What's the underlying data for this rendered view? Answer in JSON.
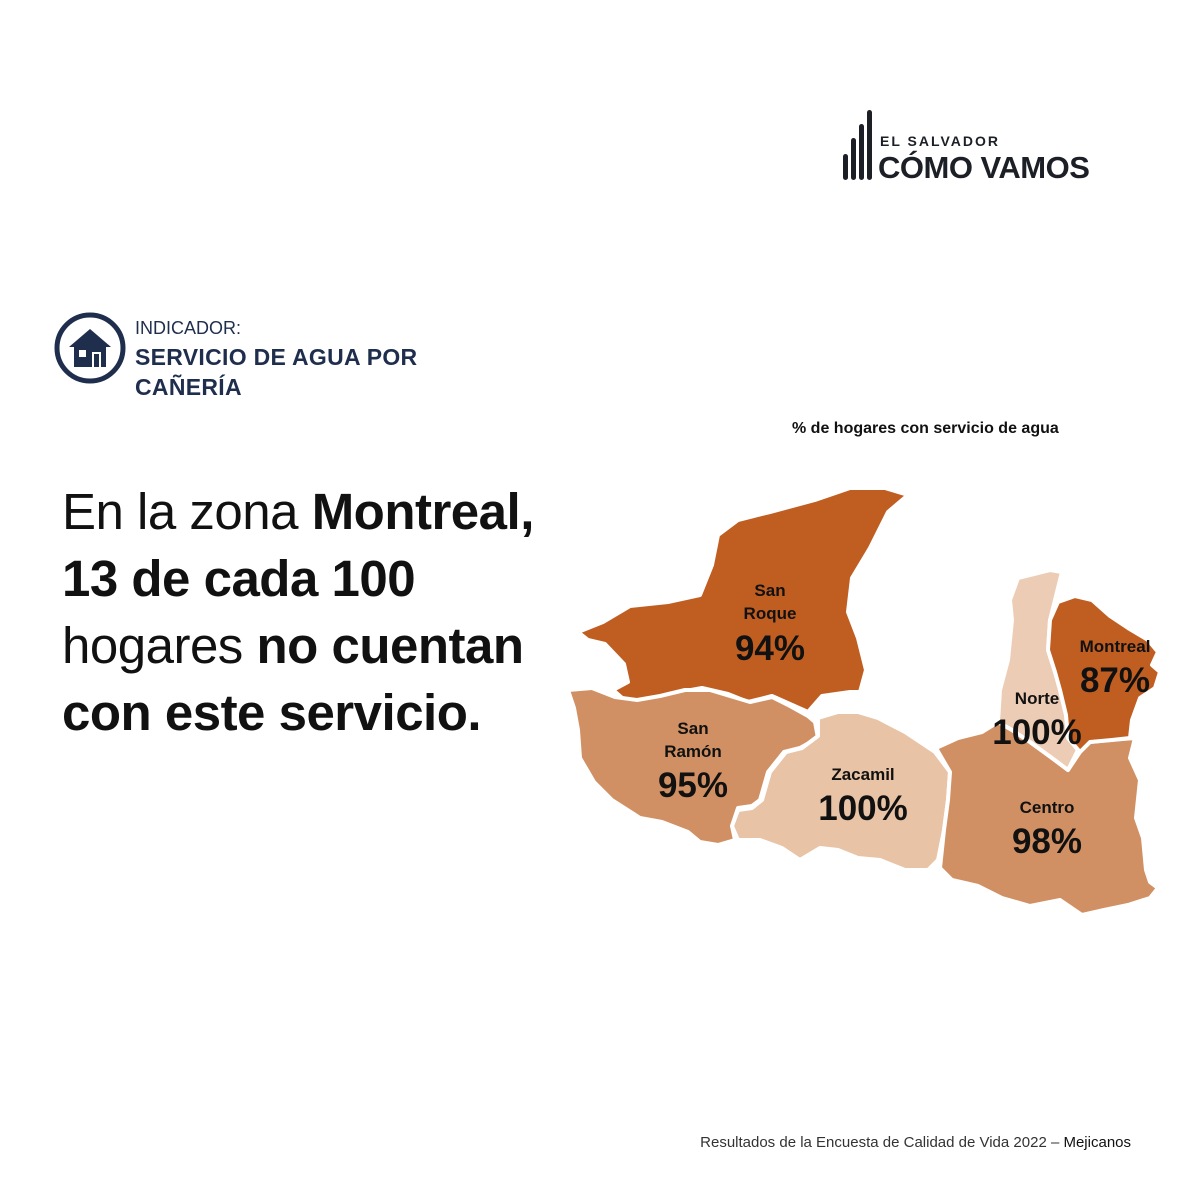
{
  "logo": {
    "line1": "EL SALVADOR",
    "line2": "CÓMO VAMOS",
    "color": "#1c1f26"
  },
  "indicator": {
    "icon": "house-icon",
    "label": "INDICADOR:",
    "title": "SERVICIO DE AGUA POR CAÑERÍA",
    "color": "#1f2e4d"
  },
  "headline": {
    "part1": "En la zona ",
    "part2": "Montreal, 13 de cada 100",
    "part3": " hogares ",
    "part4": "no cuentan con este servicio."
  },
  "map": {
    "caption": "% de hogares con servicio de agua",
    "regions": [
      {
        "name_lines": [
          "San",
          "Roque"
        ],
        "value": "94%",
        "color": "#c05e22"
      },
      {
        "name_lines": [
          "San",
          "Ramón"
        ],
        "value": "95%",
        "color": "#d09063"
      },
      {
        "name_lines": [
          "Zacamil"
        ],
        "value": "100%",
        "color": "#e8c3a5"
      },
      {
        "name_lines": [
          "Norte"
        ],
        "value": "100%",
        "color": "#ecccb4"
      },
      {
        "name_lines": [
          "Montreal"
        ],
        "value": "87%",
        "color": "#c05e22"
      },
      {
        "name_lines": [
          "Centro"
        ],
        "value": "98%",
        "color": "#d09063"
      }
    ]
  },
  "footer": {
    "text": "Resultados de la Encuesta de Calidad de Vida 2022 – ",
    "place": "Mejicanos"
  }
}
